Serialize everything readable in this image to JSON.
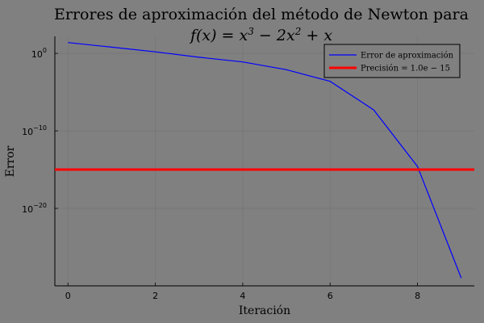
{
  "chart_data": {
    "type": "line",
    "title": "Errores de aproximación del método de Newton para",
    "subtitle_parts": {
      "lhs": "f(x) = x",
      "exp1": "3",
      "mid": " − 2x",
      "exp2": "2",
      "rhs": " + x"
    },
    "xlabel": "Iteración",
    "ylabel": "Error",
    "xlim": [
      -0.3,
      9.3
    ],
    "ylim_log10": [
      -30,
      2.2
    ],
    "y_scale": "log10",
    "x_ticks": [
      0,
      2,
      4,
      6,
      8
    ],
    "x_tick_labels": [
      "0",
      "2",
      "4",
      "6",
      "8"
    ],
    "y_ticks_log10": [
      0,
      -10,
      -20
    ],
    "y_tick_labels": [
      {
        "base": "10",
        "exp": "0"
      },
      {
        "base": "10",
        "exp": "−10"
      },
      {
        "base": "10",
        "exp": "−20"
      }
    ],
    "grid": true,
    "legend_position": "top-right",
    "series": [
      {
        "name": "Error de aproximación",
        "color": "#0000ff",
        "x": [
          0,
          1,
          2,
          3,
          4,
          5,
          6,
          7,
          8,
          9
        ],
        "log10_y": [
          1.4,
          0.8,
          0.2,
          -0.5,
          -1.1,
          -2.1,
          -3.6,
          -7.3,
          -14.6,
          -29.0
        ]
      },
      {
        "name": "Precisión = 1.0e − 15",
        "color": "#ff0000",
        "horizontal_line_log10": -15
      }
    ]
  }
}
